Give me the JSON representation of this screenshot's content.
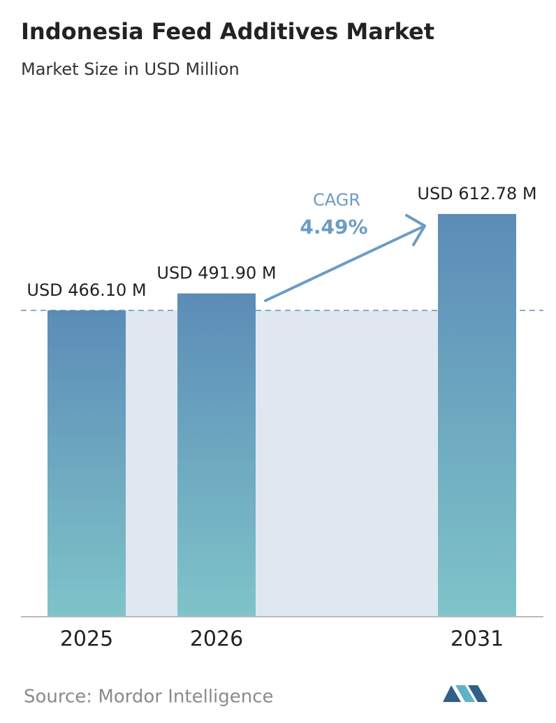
{
  "chart_data": {
    "type": "bar",
    "title": "Indonesia Feed Additives Market",
    "subtitle": "Market Size in USD Million",
    "categories": [
      "2025",
      "2026",
      "2031"
    ],
    "values": [
      466.1,
      491.9,
      612.78
    ],
    "value_labels": [
      "USD 466.10 M",
      "USD 491.90 M",
      "USD 612.78 M"
    ],
    "annotation": {
      "label": "CAGR",
      "value": "4.49%"
    },
    "source": "Source:  Mordor Intelligence",
    "colors": {
      "top": "#5b8cb7",
      "bottom": "#7fc4c9"
    }
  }
}
